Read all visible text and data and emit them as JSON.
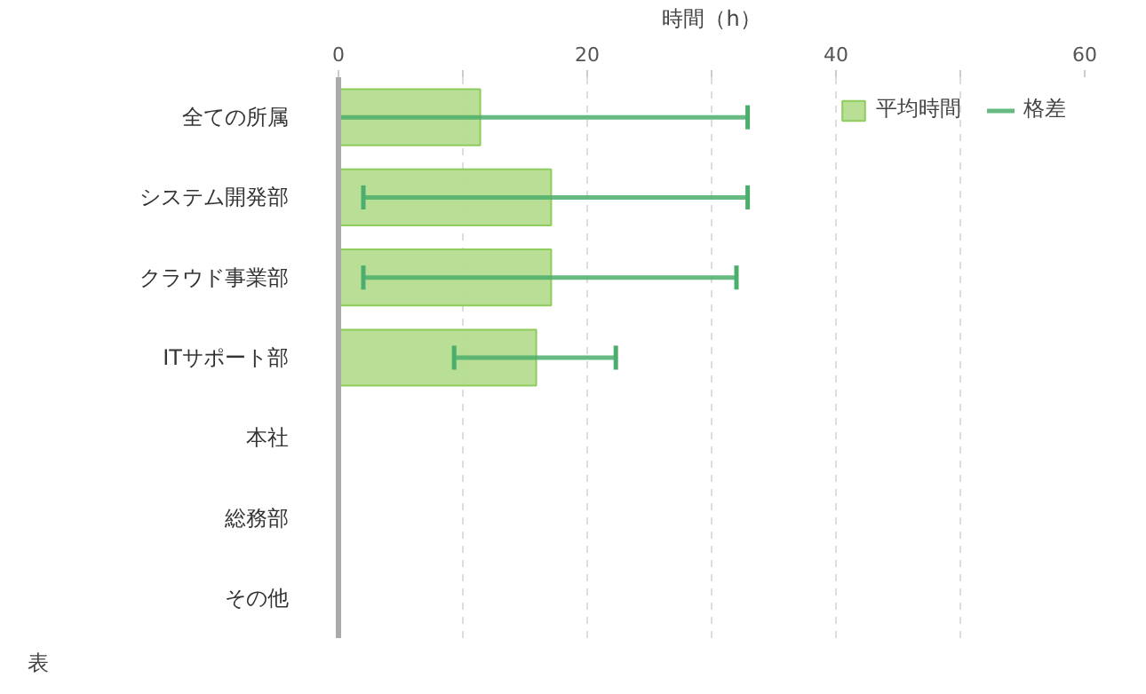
{
  "chart_data": {
    "type": "bar",
    "orientation": "horizontal",
    "xlabel": "時間（h）",
    "categories": [
      "全ての所属",
      "システム開発部",
      "クラウド事業部",
      "ITサポート部",
      "本社",
      "総務部",
      "その他"
    ],
    "series": [
      {
        "name": "平均時間",
        "color": "#b5dc8f",
        "values": [
          11.4,
          17.1,
          17.1,
          15.9,
          null,
          null,
          null
        ],
        "errors": [
          [
            0,
            32.9
          ],
          [
            2,
            32.9
          ],
          [
            2,
            32
          ],
          [
            9.3,
            22.3
          ],
          null,
          null,
          null
        ]
      }
    ],
    "xlim": [
      0,
      60
    ],
    "xticks": [
      0,
      {
        "value": 10,
        "label": null
      },
      20,
      {
        "value": 30,
        "label": null
      },
      40,
      {
        "value": 50,
        "label": null
      },
      60
    ],
    "grid": "x",
    "legend": "top right",
    "annotations": [
      "表",
      "格差"
    ]
  }
}
